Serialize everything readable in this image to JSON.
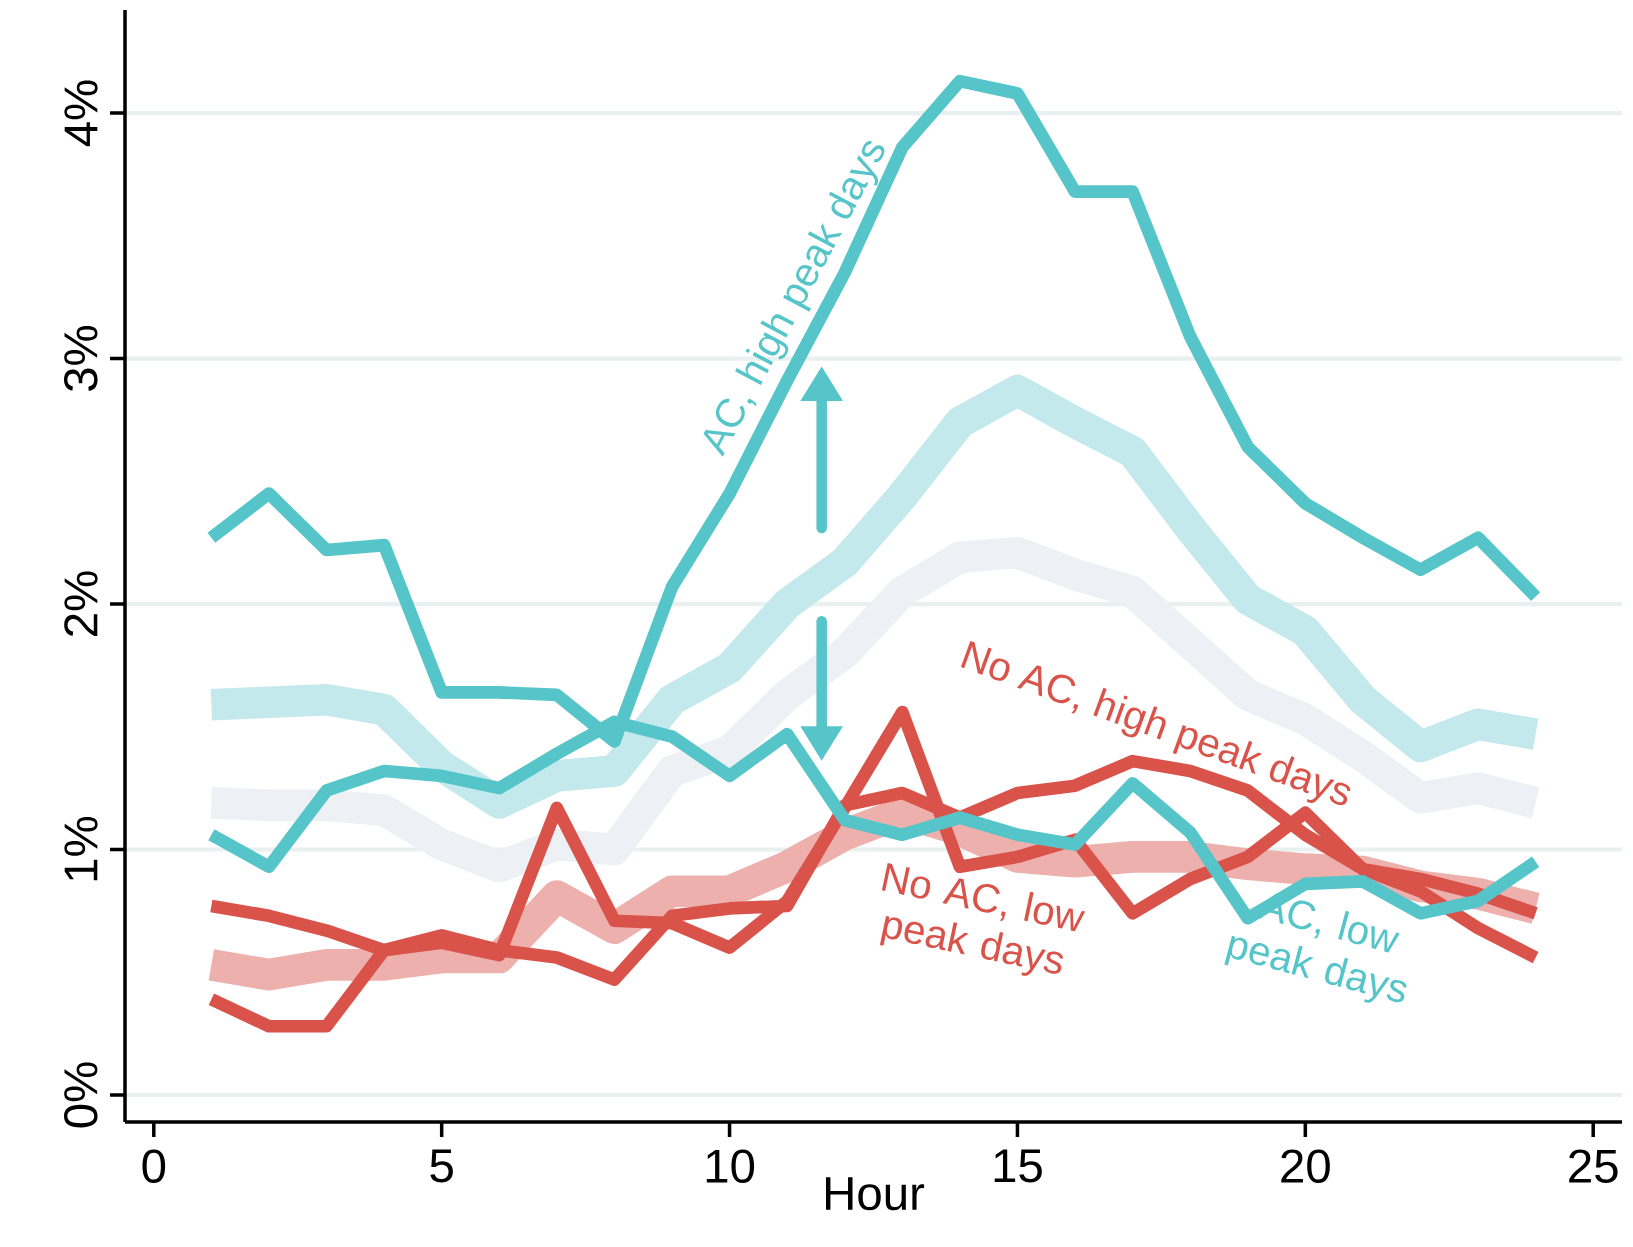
{
  "chart_data": {
    "type": "line",
    "xlabel": "Hour",
    "x": [
      1,
      2,
      3,
      4,
      5,
      6,
      7,
      8,
      9,
      10,
      11,
      12,
      13,
      14,
      15,
      16,
      17,
      18,
      19,
      20,
      21,
      22,
      23,
      24
    ],
    "series": [
      {
        "color": "#edf0f4",
        "values": [
          1.19,
          1.18,
          1.18,
          1.16,
          1.02,
          0.93,
          1.02,
          1.0,
          1.32,
          1.4,
          1.63,
          1.8,
          2.05,
          2.19,
          2.21,
          2.12,
          2.05,
          1.84,
          1.63,
          1.53,
          1.38,
          1.21,
          1.25,
          1.19
        ]
      },
      {
        "color": "#c3e9ed",
        "values": [
          1.59,
          1.6,
          1.61,
          1.57,
          1.34,
          1.19,
          1.3,
          1.32,
          1.61,
          1.74,
          2.0,
          2.17,
          2.44,
          2.74,
          2.87,
          2.74,
          2.62,
          2.31,
          2.02,
          1.89,
          1.61,
          1.42,
          1.51,
          1.47
        ]
      },
      {
        "color": "#edb0ad",
        "values": [
          0.53,
          0.49,
          0.53,
          0.53,
          0.56,
          0.56,
          0.81,
          0.68,
          0.83,
          0.83,
          0.93,
          1.06,
          1.15,
          1.08,
          0.97,
          0.95,
          0.97,
          0.97,
          0.94,
          0.92,
          0.91,
          0.85,
          0.82,
          0.76
        ]
      },
      {
        "name": "No AC, high peak days",
        "color": "#d9534a",
        "values": [
          0.77,
          0.73,
          0.67,
          0.59,
          0.65,
          0.59,
          0.56,
          0.47,
          0.73,
          0.76,
          0.77,
          1.18,
          1.23,
          1.13,
          1.23,
          1.26,
          1.36,
          1.32,
          1.24,
          1.06,
          0.92,
          0.83,
          0.68,
          0.56
        ]
      },
      {
        "name": "No AC, low peak days",
        "color": "#d9534a",
        "values": [
          0.39,
          0.28,
          0.28,
          0.59,
          0.62,
          0.57,
          1.17,
          0.71,
          0.7,
          0.6,
          0.79,
          1.17,
          1.56,
          0.93,
          0.97,
          1.04,
          0.74,
          0.88,
          0.97,
          1.15,
          0.92,
          0.88,
          0.82,
          0.74
        ]
      },
      {
        "name": "AC, high peak days",
        "color": "#56c5c9",
        "values": [
          2.27,
          2.45,
          2.22,
          2.24,
          1.64,
          1.64,
          1.63,
          1.44,
          2.07,
          2.45,
          2.91,
          3.35,
          3.86,
          4.13,
          4.08,
          3.68,
          3.68,
          3.09,
          2.64,
          2.41,
          2.27,
          2.14,
          2.27,
          2.03
        ]
      },
      {
        "name": "AC, low peak days",
        "color": "#56c5c9",
        "values": [
          1.06,
          0.93,
          1.24,
          1.32,
          1.3,
          1.25,
          1.39,
          1.52,
          1.46,
          1.3,
          1.47,
          1.12,
          1.06,
          1.13,
          1.06,
          1.02,
          1.27,
          1.07,
          0.72,
          0.86,
          0.87,
          0.74,
          0.79,
          0.95
        ]
      }
    ],
    "xlim": [
      -0.5,
      25.5
    ],
    "xticks": [
      0,
      5,
      10,
      15,
      20,
      25
    ],
    "ylim": [
      -0.11,
      4.42
    ],
    "yticks": [
      {
        "value": 0,
        "label": "0%"
      },
      {
        "value": 1,
        "label": "1%"
      },
      {
        "value": 2,
        "label": "2%"
      },
      {
        "value": 3,
        "label": "3%"
      },
      {
        "value": 4,
        "label": "4%"
      }
    ],
    "grid": "y"
  }
}
